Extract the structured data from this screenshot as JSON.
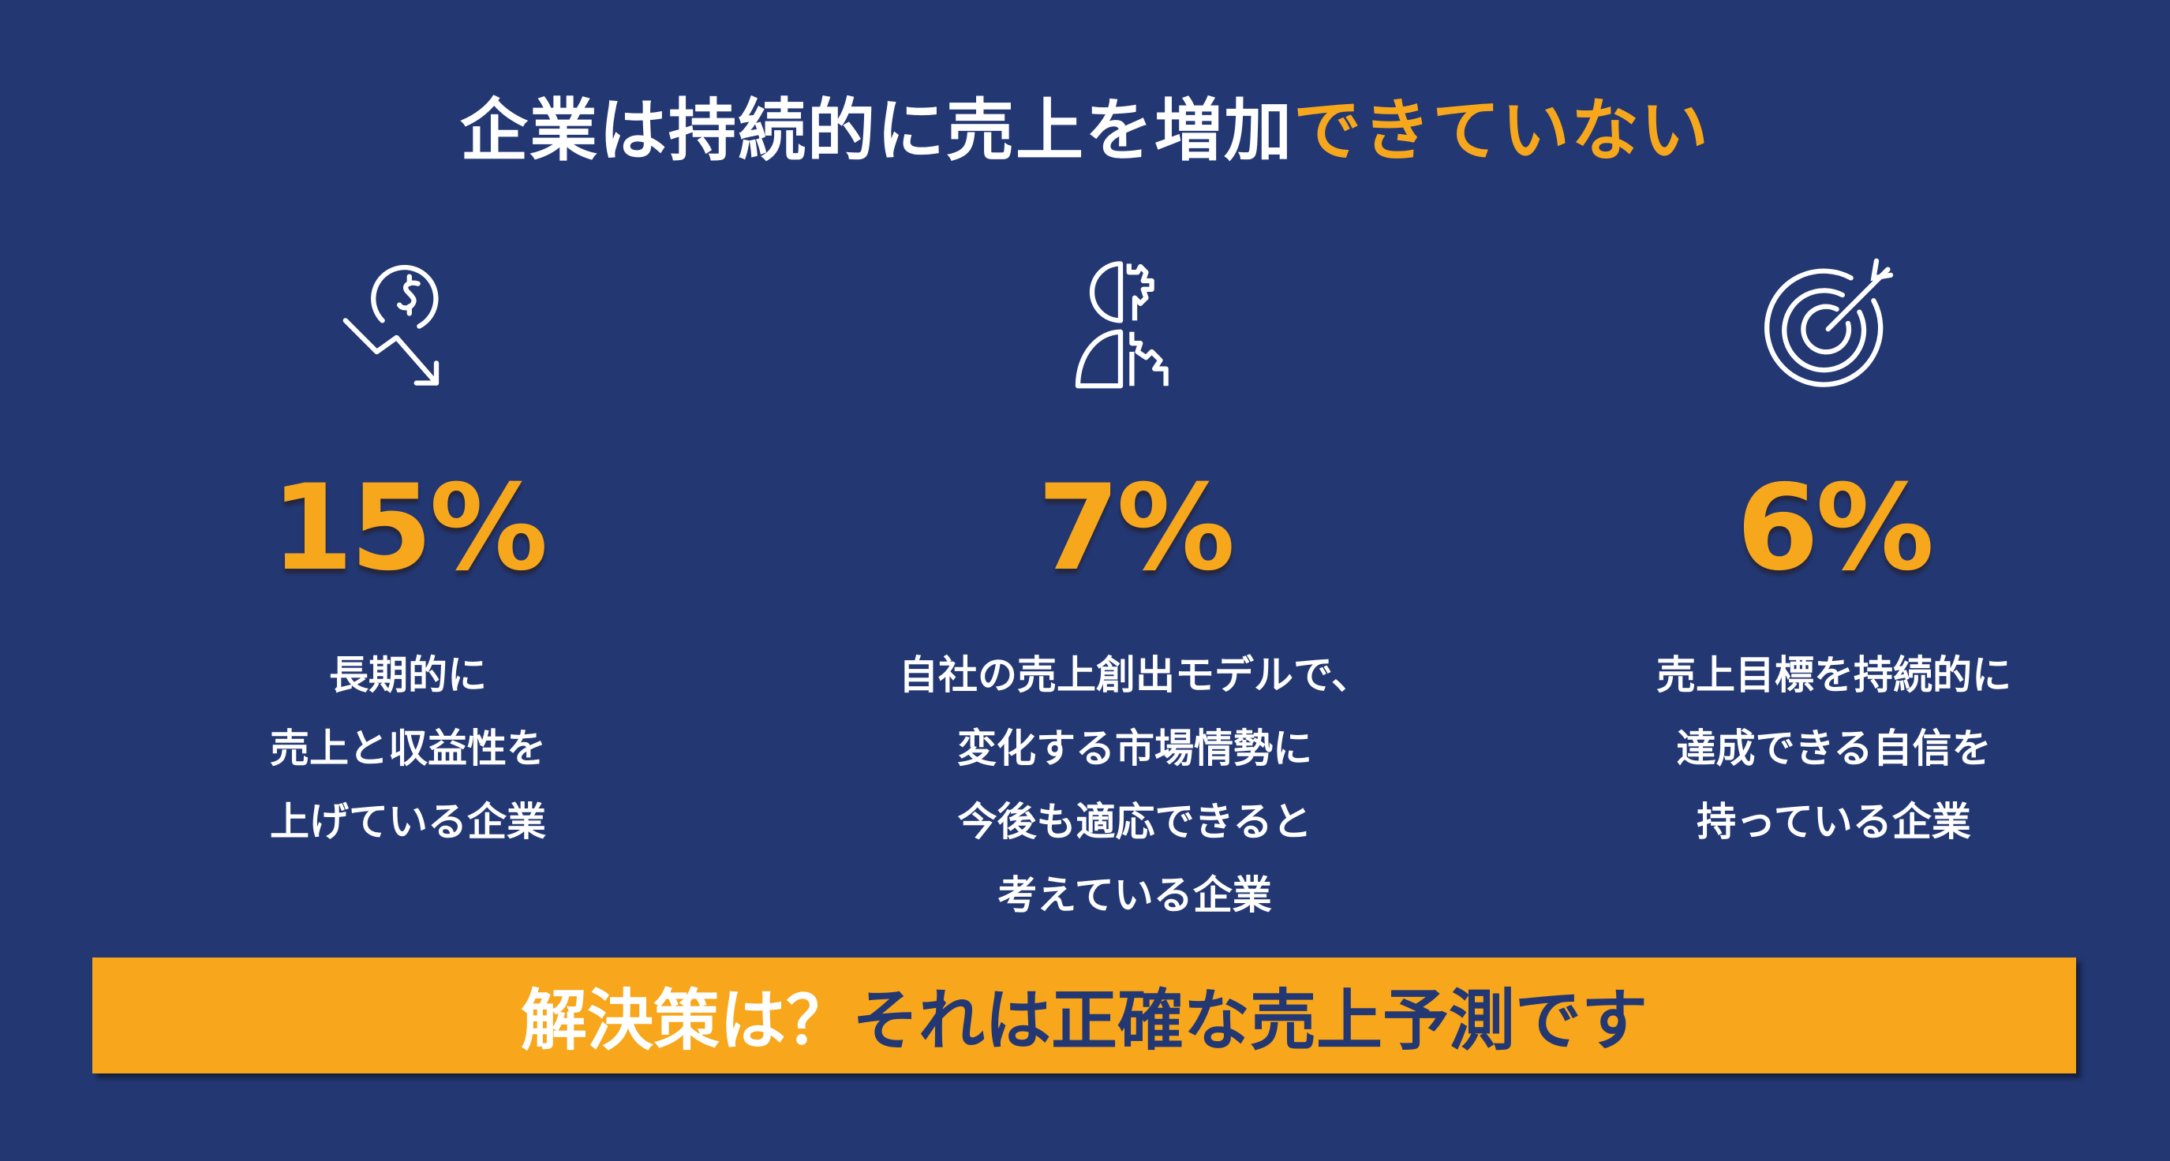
{
  "title": {
    "main": "企業は持続的に売上を増加",
    "highlight": "できていない"
  },
  "colors": {
    "background": "#233772",
    "accent": "#f7a71c",
    "text": "#ffffff"
  },
  "stats": [
    {
      "icon": "dollar-down-trend-icon",
      "value": "15%",
      "lines": [
        "長期的に",
        "売上と収益性を",
        "上げている企業"
      ]
    },
    {
      "icon": "head-gears-icon",
      "value": "7%",
      "lines": [
        "自社の売上創出モデルで、",
        "変化する市場情勢に",
        "今後も適応できると",
        "考えている企業"
      ]
    },
    {
      "icon": "target-arrow-icon",
      "value": "6%",
      "lines": [
        "売上目標を持続的に",
        "達成できる自信を",
        "持っている企業"
      ]
    }
  ],
  "banner": {
    "question": "解決策は？",
    "answer": "それは正確な売上予測です"
  }
}
